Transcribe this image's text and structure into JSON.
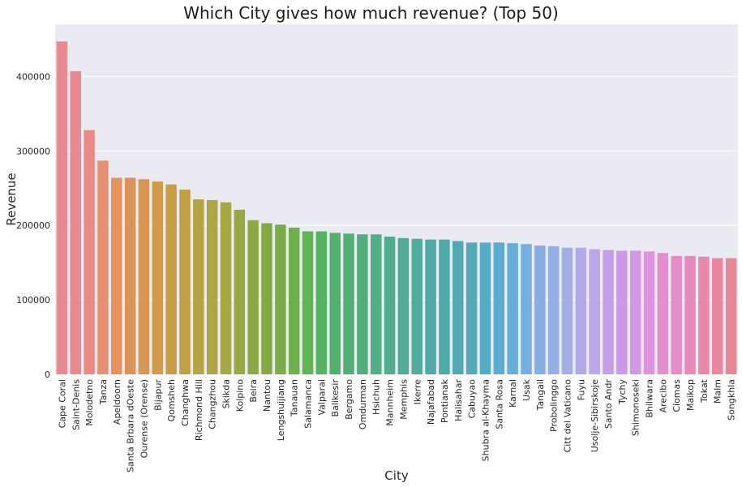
{
  "chart_data": {
    "type": "bar",
    "title": "Which City gives how much revenue? (Top 50)",
    "xlabel": "City",
    "ylabel": "Revenue",
    "ylim": [
      0,
      470000
    ],
    "yticks": [
      0,
      100000,
      200000,
      300000,
      400000
    ],
    "ytick_labels": [
      "0",
      "100000",
      "200000",
      "300000",
      "400000"
    ],
    "grid": true,
    "categories": [
      "Cape Coral",
      "Saint-Denis",
      "Molodetno",
      "Tanza",
      "Apeldoorn",
      "Santa Brbara dOeste",
      "Ourense (Orense)",
      "Bijapur",
      "Qomsheh",
      "Changhwa",
      "Richmond Hill",
      "Changzhou",
      "Skikda",
      "Kolpino",
      "Beira",
      "Nantou",
      "Lengshuijiang",
      "Tanauan",
      "Salamanca",
      "Valparai",
      "Balikesir",
      "Bergamo",
      "Omdurman",
      "Hsichuh",
      "Mannheim",
      "Memphis",
      "Ikerre",
      "Najafabad",
      "Pontianak",
      "Halisahar",
      "Cabuyao",
      "Shubra al-Khayma",
      "Santa Rosa",
      "Karnal",
      "Usak",
      "Tangail",
      "Probolinggo",
      "Citt del Vaticano",
      "Fuyu",
      "Usolje-Sibirskoje",
      "Santo Andr",
      "Tychy",
      "Shimonoseki",
      "Bhilwara",
      "Arecibo",
      "Ciomas",
      "Maikop",
      "Tokat",
      "Malm",
      "Songkhla"
    ],
    "values": [
      447000,
      407000,
      328000,
      287000,
      264000,
      264000,
      262000,
      259000,
      255000,
      248000,
      235000,
      234000,
      231000,
      221000,
      207000,
      203000,
      201000,
      197000,
      192000,
      192000,
      190000,
      189000,
      188000,
      188000,
      185000,
      183000,
      182000,
      181000,
      181000,
      179000,
      177000,
      177000,
      177000,
      176000,
      175000,
      173000,
      172000,
      170000,
      170000,
      168000,
      167000,
      166000,
      166000,
      165000,
      163000,
      159000,
      159000,
      158000,
      156000,
      156000
    ],
    "colors": [
      "#e8888f",
      "#e8888f",
      "#e98b83",
      "#e69070",
      "#e4935f",
      "#de9458",
      "#d99752",
      "#d29a4b",
      "#c89d48",
      "#c0a046",
      "#b6a444",
      "#aea644",
      "#a5a844",
      "#9aa844",
      "#8ea844",
      "#85aa44",
      "#7aac48",
      "#6eaf4e",
      "#5db652",
      "#53b35e",
      "#52b06b",
      "#52af74",
      "#52ad7b",
      "#52ae85",
      "#51ad8d",
      "#50ac96",
      "#50ab9d",
      "#50aaa3",
      "#4faaaa",
      "#51aab3",
      "#52abbb",
      "#54acc5",
      "#59add0",
      "#66add8",
      "#74afe0",
      "#85afe5",
      "#94afe6",
      "#a3ade6",
      "#b0abe8",
      "#bca7e8",
      "#c59ee8",
      "#cd99e6",
      "#d397e3",
      "#dd93dd",
      "#e38fcf",
      "#e68dc5",
      "#e78ab9",
      "#e889ac",
      "#e8889e",
      "#e88897"
    ]
  }
}
